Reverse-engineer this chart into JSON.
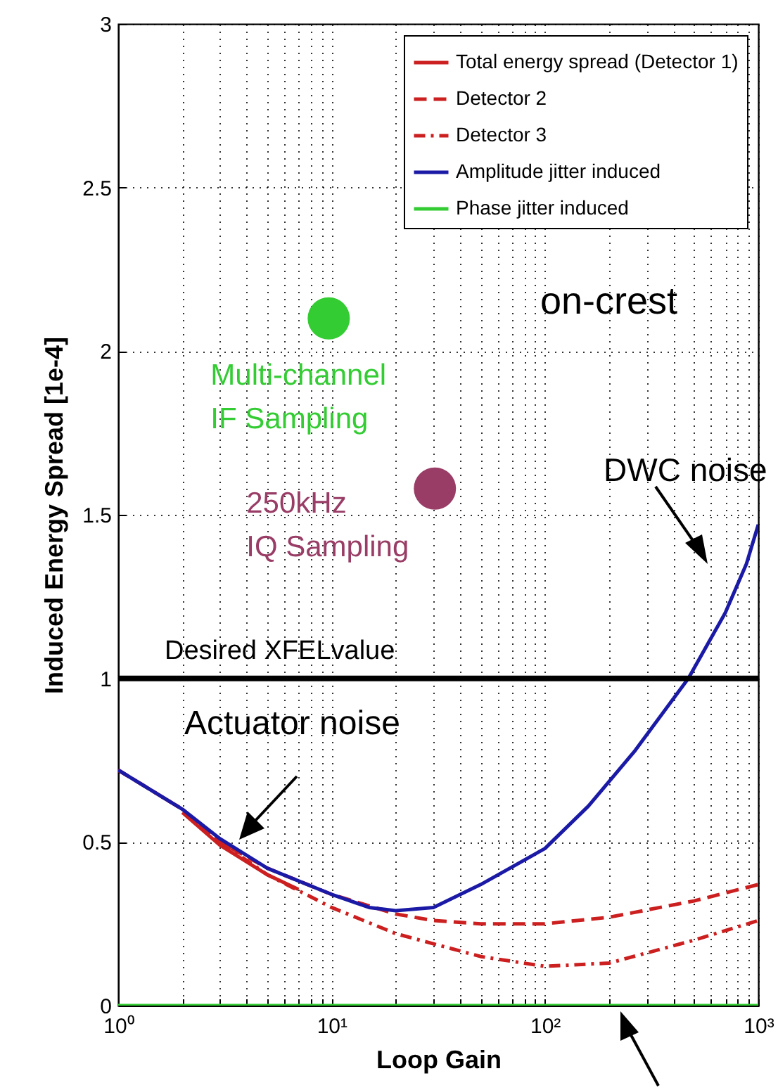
{
  "chart_data": {
    "type": "line",
    "xlabel": "Loop Gain",
    "ylabel": "Induced Energy Spread [1e-4]",
    "log": "x",
    "grid": true,
    "legend": "top right",
    "xlim": [
      1,
      1000
    ],
    "xticks": [
      {
        "value": 1,
        "label": "10⁰"
      },
      {
        "value": 2,
        "label": null
      },
      {
        "value": 3,
        "label": null
      },
      {
        "value": 4,
        "label": null
      },
      {
        "value": 5,
        "label": null
      },
      {
        "value": 6,
        "label": null
      },
      {
        "value": 7,
        "label": null
      },
      {
        "value": 8,
        "label": null
      },
      {
        "value": 9,
        "label": null
      },
      {
        "value": 10,
        "label": "10¹"
      },
      {
        "value": 20,
        "label": null
      },
      {
        "value": 30,
        "label": null
      },
      {
        "value": 40,
        "label": null
      },
      {
        "value": 50,
        "label": null
      },
      {
        "value": 60,
        "label": null
      },
      {
        "value": 70,
        "label": null
      },
      {
        "value": 80,
        "label": null
      },
      {
        "value": 90,
        "label": null
      },
      {
        "value": 100,
        "label": "10²"
      },
      {
        "value": 200,
        "label": null
      },
      {
        "value": 300,
        "label": null
      },
      {
        "value": 400,
        "label": null
      },
      {
        "value": 500,
        "label": null
      },
      {
        "value": 600,
        "label": null
      },
      {
        "value": 700,
        "label": null
      },
      {
        "value": 800,
        "label": null
      },
      {
        "value": 900,
        "label": null
      },
      {
        "value": 1000,
        "label": "10³"
      }
    ],
    "ylim": [
      0,
      3
    ],
    "yticks": [
      0,
      0.5,
      1,
      1.5,
      2,
      2.5,
      3
    ],
    "series": [
      {
        "name": "Total energy spread (Detector 1)",
        "color": "#cc1f1f",
        "line_style": "solid",
        "x": [
          2,
          3,
          5,
          7
        ],
        "values": [
          0.59,
          0.49,
          0.4,
          0.355
        ]
      },
      {
        "name": "Detector 2",
        "color": "#cc1f1f",
        "line_style": "dashed",
        "x": [
          1,
          2,
          3,
          5,
          10,
          20,
          30,
          50,
          100,
          200,
          500,
          1000
        ],
        "values": [
          0.72,
          0.6,
          0.5,
          0.42,
          0.34,
          0.28,
          0.26,
          0.25,
          0.25,
          0.27,
          0.32,
          0.37
        ]
      },
      {
        "name": "Detector 3",
        "color": "#cc1f1f",
        "line_style": "dashdot",
        "x": [
          1,
          2,
          3,
          5,
          10,
          20,
          50,
          100,
          200,
          500,
          1000
        ],
        "values": [
          0.72,
          0.6,
          0.5,
          0.4,
          0.3,
          0.22,
          0.15,
          0.12,
          0.13,
          0.2,
          0.26
        ]
      },
      {
        "name": "Amplitude jitter induced",
        "color": "#1a1aa6",
        "line_style": "solid",
        "x": [
          1,
          2,
          3,
          5,
          10,
          15,
          20,
          30,
          50,
          100,
          160,
          265,
          470,
          700,
          880,
          1000
        ],
        "values": [
          0.72,
          0.6,
          0.51,
          0.42,
          0.34,
          0.3,
          0.29,
          0.3,
          0.37,
          0.48,
          0.61,
          0.78,
          1.0,
          1.2,
          1.35,
          1.47
        ]
      },
      {
        "name": "Phase jitter induced",
        "color": "#33cc33",
        "line_style": "solid",
        "x": [
          1,
          1000
        ],
        "values": [
          0,
          0
        ]
      },
      {
        "type": "scatter",
        "name": "Multi-channel IF Sampling",
        "color": "#33cc33",
        "marker": "circle",
        "x": [
          9.7
        ],
        "values": [
          2.1
        ]
      },
      {
        "type": "scatter",
        "name": "250kHz IQ Sampling",
        "color": "#993d66",
        "marker": "circle",
        "x": [
          30.5
        ],
        "values": [
          1.58
        ]
      }
    ],
    "ref_lines": [
      {
        "axis": "y",
        "value": 1,
        "label": "Desired XFELvalue",
        "color": "#000000"
      }
    ],
    "annotations": [
      "on-crest",
      "DWC noise",
      "Actuator noise"
    ]
  }
}
